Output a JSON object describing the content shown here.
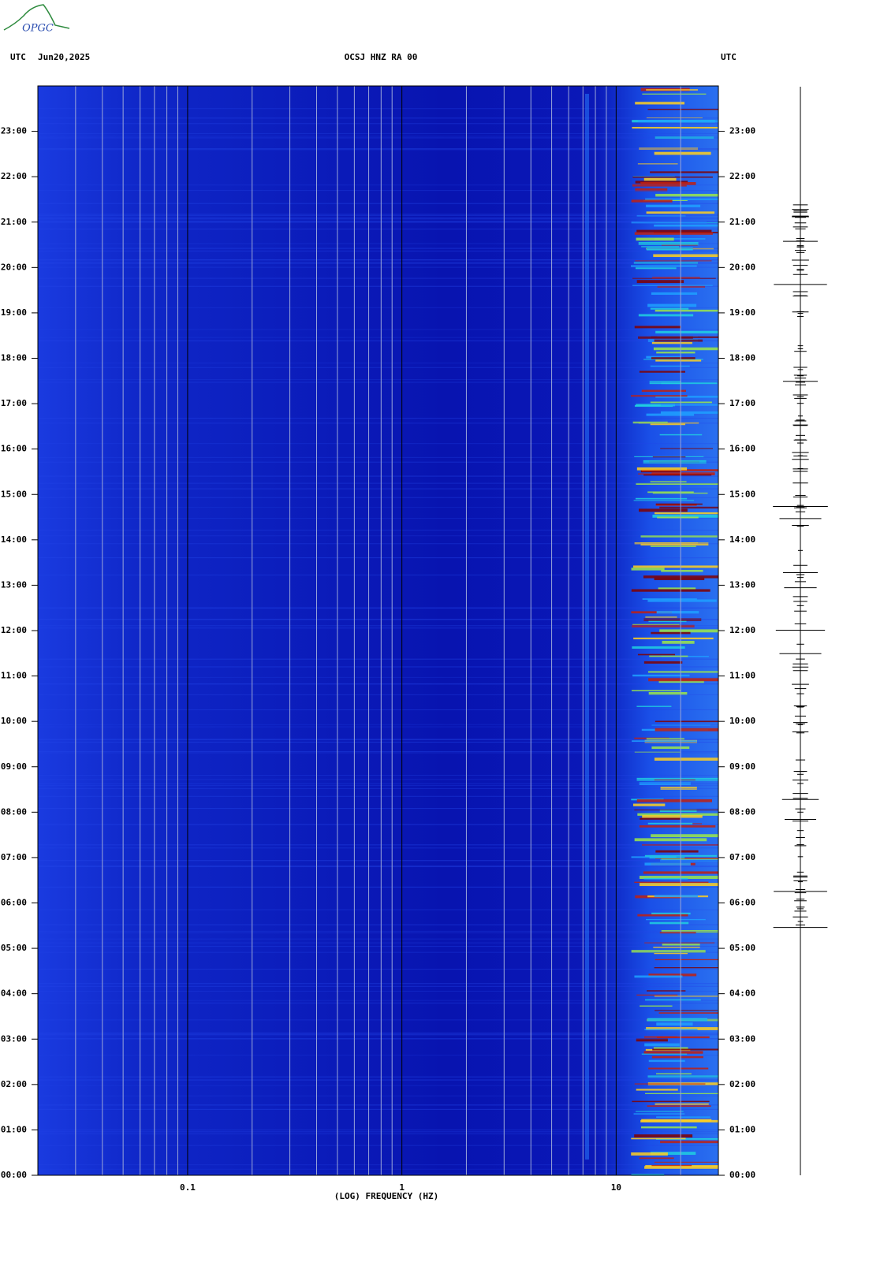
{
  "logo": "OPGC",
  "chart_data": {
    "type": "spectrogram",
    "title": "OCSJ HNZ RA 00",
    "left_header": "UTC",
    "date": "Jun20,2025",
    "right_header": "UTC",
    "xlabel": "(LOG) FREQUENCY (HZ)",
    "xscale": "log",
    "xlim": [
      0.02,
      30
    ],
    "xticks": [
      0.1,
      1,
      10
    ],
    "xgrid_minor": [
      0.03,
      0.04,
      0.05,
      0.06,
      0.07,
      0.08,
      0.09,
      0.2,
      0.3,
      0.4,
      0.5,
      0.6,
      0.7,
      0.8,
      0.9,
      2,
      3,
      4,
      5,
      6,
      7,
      8,
      9,
      20
    ],
    "ylim": [
      0,
      24
    ],
    "yticks": [
      {
        "value": 0,
        "label": "00:00"
      },
      {
        "value": 1,
        "label": "01:00"
      },
      {
        "value": 2,
        "label": "02:00"
      },
      {
        "value": 3,
        "label": "03:00"
      },
      {
        "value": 4,
        "label": "04:00"
      },
      {
        "value": 5,
        "label": "05:00"
      },
      {
        "value": 6,
        "label": "06:00"
      },
      {
        "value": 7,
        "label": "07:00"
      },
      {
        "value": 8,
        "label": "08:00"
      },
      {
        "value": 9,
        "label": "09:00"
      },
      {
        "value": 10,
        "label": "10:00"
      },
      {
        "value": 11,
        "label": "11:00"
      },
      {
        "value": 12,
        "label": "12:00"
      },
      {
        "value": 13,
        "label": "13:00"
      },
      {
        "value": 14,
        "label": "14:00"
      },
      {
        "value": 15,
        "label": "15:00"
      },
      {
        "value": 16,
        "label": "16:00"
      },
      {
        "value": 17,
        "label": "17:00"
      },
      {
        "value": 18,
        "label": "18:00"
      },
      {
        "value": 19,
        "label": "19:00"
      },
      {
        "value": 20,
        "label": "20:00"
      },
      {
        "value": 21,
        "label": "21:00"
      },
      {
        "value": 22,
        "label": "22:00"
      },
      {
        "value": 23,
        "label": "23:00"
      }
    ],
    "grid": true
  }
}
